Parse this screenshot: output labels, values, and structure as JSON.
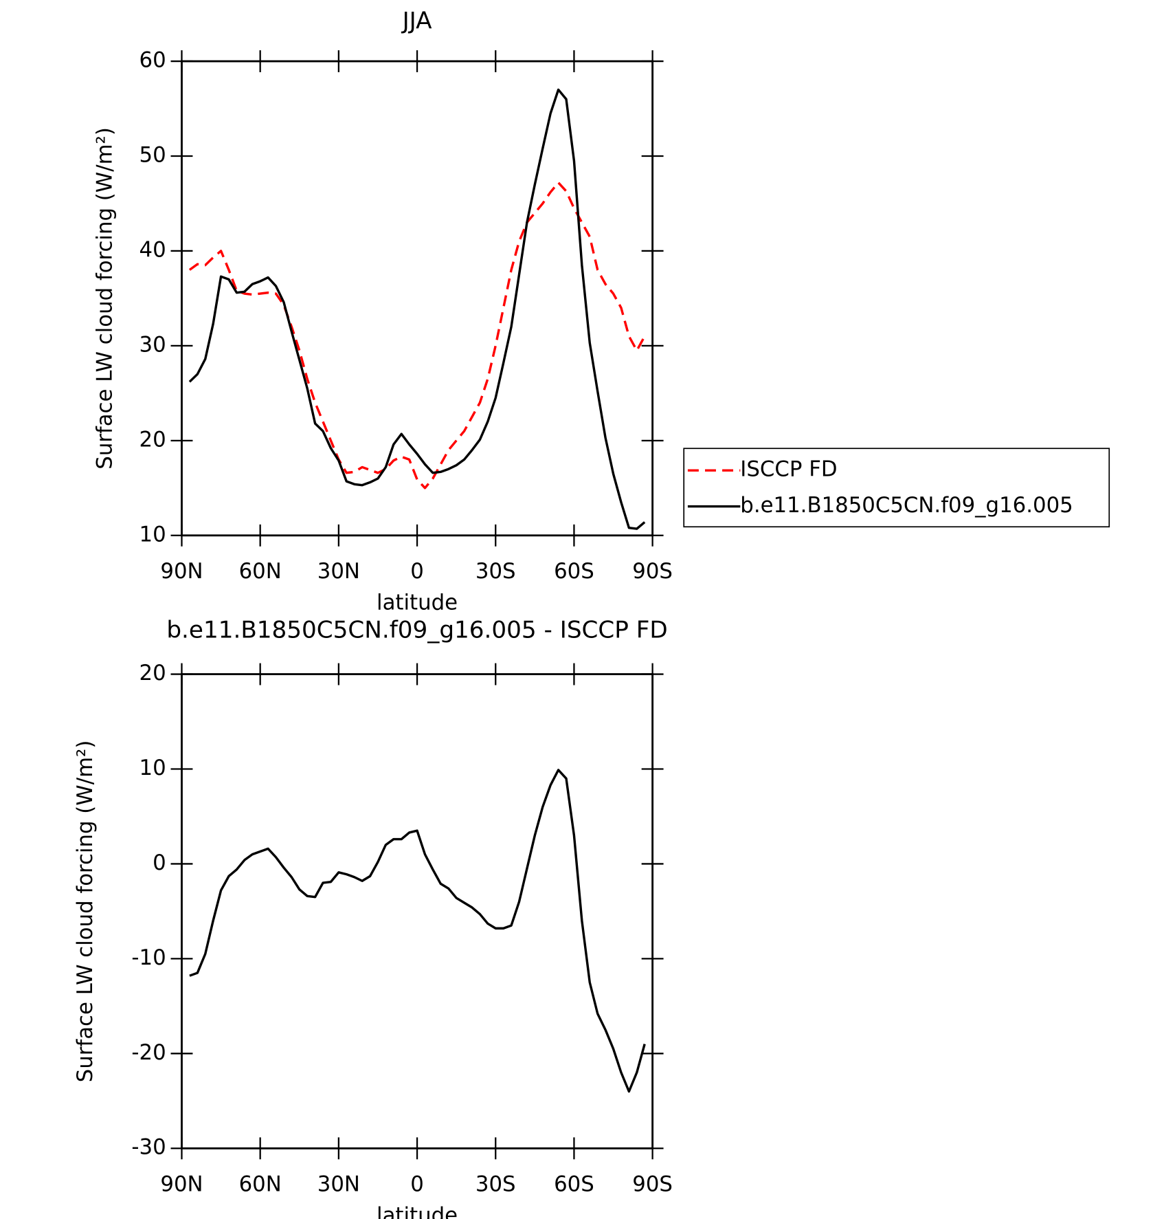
{
  "chart_data": [
    {
      "type": "line",
      "title": "JJA",
      "xlabel": "latitude",
      "ylabel": "Surface LW cloud forcing (W/m²)",
      "x": [
        87,
        84,
        81,
        78,
        75,
        72,
        69,
        66,
        63,
        60,
        57,
        54,
        51,
        48,
        45,
        42,
        39,
        36,
        33,
        30,
        27,
        24,
        21,
        18,
        15,
        12,
        9,
        6,
        3,
        0,
        -3,
        -6,
        -9,
        -12,
        -15,
        -18,
        -21,
        -24,
        -27,
        -30,
        -33,
        -36,
        -39,
        -42,
        -45,
        -48,
        -51,
        -54,
        -57,
        -60,
        -63,
        -66,
        -69,
        -72,
        -75,
        -78,
        -81,
        -84,
        -87
      ],
      "series": [
        {
          "name": "ISCCP FD",
          "color": "#ff0000",
          "dash": "dashed",
          "values": [
            38.0,
            38.6,
            38.5,
            39.3,
            40.0,
            38.0,
            35.8,
            35.5,
            35.4,
            35.5,
            35.6,
            35.5,
            34.3,
            32.0,
            29.5,
            26.5,
            24.0,
            22.0,
            20.0,
            18.0,
            16.6,
            16.7,
            17.2,
            16.9,
            16.6,
            17.0,
            17.9,
            18.3,
            18.0,
            15.9,
            15.0,
            16.0,
            17.5,
            19.0,
            20.0,
            21.0,
            22.5,
            24.0,
            26.5,
            30.0,
            34.0,
            38.0,
            41.0,
            43.0,
            44.0,
            45.0,
            46.2,
            47.2,
            46.3,
            44.5,
            43.0,
            41.5,
            38.0,
            36.5,
            35.5,
            34.0,
            31.0,
            29.5,
            31.0
          ]
        },
        {
          "name": "b.e11.B1850C5CN.f09_g16.005",
          "color": "#000000",
          "dash": "solid",
          "values": [
            26.2,
            27.0,
            28.6,
            32.3,
            37.3,
            37.0,
            35.6,
            35.7,
            36.5,
            36.8,
            37.2,
            36.3,
            34.6,
            31.5,
            28.5,
            25.5,
            21.8,
            21.0,
            19.2,
            17.9,
            15.7,
            15.4,
            15.3,
            15.6,
            16.0,
            17.2,
            19.6,
            20.7,
            19.6,
            18.6,
            17.5,
            16.6,
            16.7,
            17.0,
            17.4,
            18.0,
            19.0,
            20.1,
            22.0,
            24.5,
            28.2,
            32.0,
            37.5,
            43.0,
            47.0,
            50.8,
            54.5,
            57.0,
            56.0,
            49.5,
            38.5,
            30.3,
            25.2,
            20.3,
            16.5,
            13.5,
            10.8,
            10.7,
            11.4
          ]
        }
      ],
      "xlim": [
        90,
        -90
      ],
      "xticks": [
        {
          "value": 90,
          "label": "90N"
        },
        {
          "value": 60,
          "label": "60N"
        },
        {
          "value": 30,
          "label": "30N"
        },
        0,
        {
          "value": -30,
          "label": "30S"
        },
        {
          "value": -60,
          "label": "60S"
        },
        {
          "value": -90,
          "label": "90S"
        }
      ],
      "ylim": [
        10,
        60
      ],
      "yticks": [
        10,
        20,
        30,
        40,
        50,
        60
      ],
      "legend": "right"
    },
    {
      "type": "line",
      "title": "b.e11.B1850C5CN.f09_g16.005 - ISCCP FD",
      "xlabel": "latitude",
      "ylabel": "Surface LW cloud forcing (W/m²)",
      "x": [
        87,
        84,
        81,
        78,
        75,
        72,
        69,
        66,
        63,
        60,
        57,
        54,
        51,
        48,
        45,
        42,
        39,
        36,
        33,
        30,
        27,
        24,
        21,
        18,
        15,
        12,
        9,
        6,
        3,
        0,
        -3,
        -6,
        -9,
        -12,
        -15,
        -18,
        -21,
        -24,
        -27,
        -30,
        -33,
        -36,
        -39,
        -42,
        -45,
        -48,
        -51,
        -54,
        -57,
        -60,
        -63,
        -66,
        -69,
        -72,
        -75,
        -78,
        -81,
        -84,
        -87
      ],
      "series": [
        {
          "color": "#000000",
          "dash": "solid",
          "values": [
            -11.8,
            -11.5,
            -9.5,
            -6.0,
            -2.8,
            -1.3,
            -0.6,
            0.4,
            1.0,
            1.3,
            1.6,
            0.7,
            -0.4,
            -1.4,
            -2.7,
            -3.4,
            -3.5,
            -2.0,
            -1.9,
            -0.9,
            -1.1,
            -1.4,
            -1.8,
            -1.3,
            0.2,
            2.0,
            2.6,
            2.6,
            3.3,
            3.5,
            1.0,
            -0.6,
            -2.1,
            -2.6,
            -3.6,
            -4.1,
            -4.6,
            -5.3,
            -6.3,
            -6.8,
            -6.8,
            -6.5,
            -4.0,
            -0.5,
            3.0,
            6.0,
            8.3,
            9.9,
            9.0,
            3.0,
            -6.0,
            -12.5,
            -15.8,
            -17.5,
            -19.5,
            -22.0,
            -24.0,
            -22.0,
            -19.0
          ]
        }
      ],
      "xlim": [
        90,
        -90
      ],
      "xticks": [
        {
          "value": 90,
          "label": "90N"
        },
        {
          "value": 60,
          "label": "60N"
        },
        {
          "value": 30,
          "label": "30N"
        },
        0,
        {
          "value": -30,
          "label": "30S"
        },
        {
          "value": -60,
          "label": "60S"
        },
        {
          "value": -90,
          "label": "90S"
        }
      ],
      "ylim": [
        -30,
        20
      ],
      "yticks": [
        -30,
        -20,
        -10,
        0,
        10,
        20
      ],
      "legend": "none"
    }
  ]
}
